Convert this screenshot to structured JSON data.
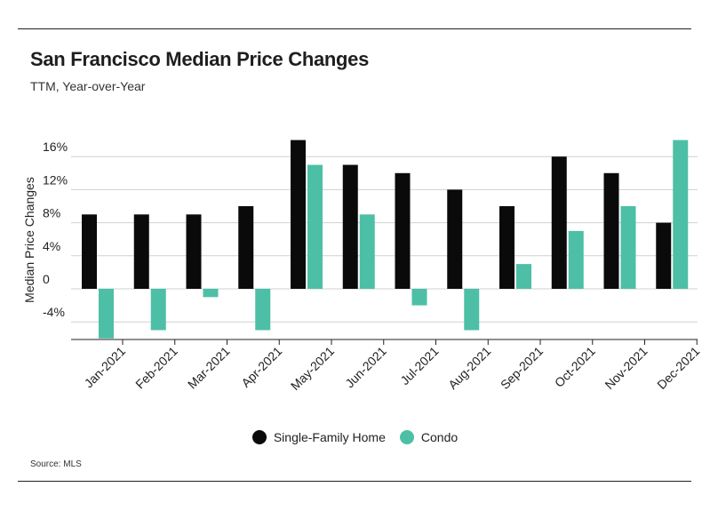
{
  "header": {
    "title": "San Francisco Median Price Changes",
    "subtitle": "TTM, Year-over-Year"
  },
  "footer": {
    "source": "Source:  MLS"
  },
  "colors": {
    "single_family": "#0a0a0a",
    "condo": "#4dbfa6",
    "grid": "#d0d0d0",
    "axis": "#222222"
  },
  "chart_data": {
    "type": "bar",
    "title": "San Francisco Median Price Changes",
    "subtitle": "TTM, Year-over-Year",
    "ylabel": "Median Price Changes",
    "xlabel": "",
    "ylim": [
      -6,
      18
    ],
    "yticks": [
      -4,
      0,
      4,
      8,
      12,
      16
    ],
    "ytick_labels": [
      "-4%",
      "0",
      "4%",
      "8%",
      "12%",
      "16%"
    ],
    "grid": true,
    "legend_position": "bottom",
    "categories": [
      "Jan-2021",
      "Feb-2021",
      "Mar-2021",
      "Apr-2021",
      "May-2021",
      "Jun-2021",
      "Jul-2021",
      "Aug-2021",
      "Sep-2021",
      "Oct-2021",
      "Nov-2021",
      "Dec-2021"
    ],
    "series": [
      {
        "name": "Single-Family Home",
        "values": [
          9,
          9,
          9,
          10,
          18,
          15,
          14,
          12,
          10,
          16,
          14,
          8
        ]
      },
      {
        "name": "Condo",
        "values": [
          -6,
          -5,
          -1,
          -5,
          15,
          9,
          -2,
          -5,
          3,
          7,
          10,
          18
        ]
      }
    ]
  }
}
